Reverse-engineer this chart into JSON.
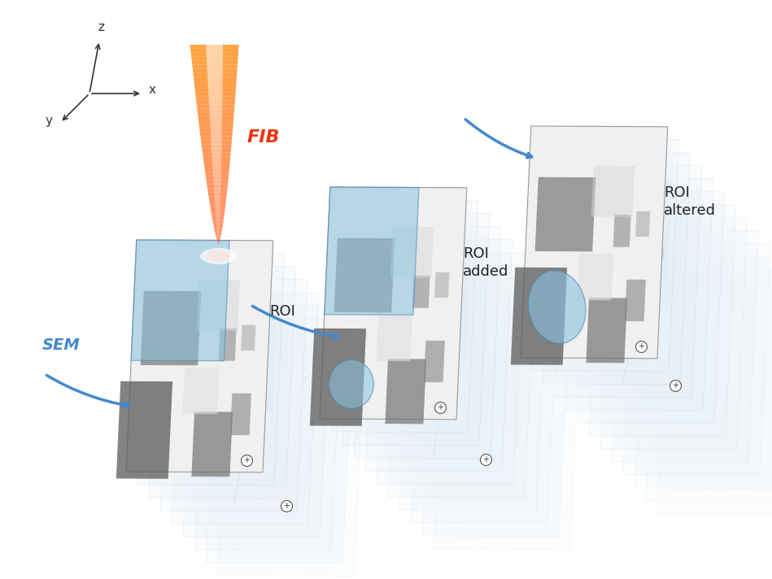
{
  "background_color": "#ffffff",
  "fig_width": 9.49,
  "fig_height": 7.12,
  "dpi": 100,
  "fib_label": "FIB",
  "fib_color": "#ee3311",
  "sem_label": "SEM",
  "sem_color": "#4488cc",
  "roi_label": "ROI",
  "roi_added_label": "ROI\nadded",
  "roi_altered_label": "ROI\naltered",
  "axis_color": "#333333",
  "label_z": "z",
  "label_x": "x",
  "label_y": "y",
  "roi_blue": "#89c4e0",
  "roi_blue_dark": "#4488bb",
  "note_fontsize": 13,
  "axis_label_fontsize": 11,
  "plus_fontsize": 9
}
